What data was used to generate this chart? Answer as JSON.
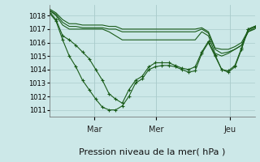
{
  "background_color": "#cce8e8",
  "plot_bg_color": "#cce8e8",
  "grid_color": "#aacccc",
  "line_color": "#1a5c1a",
  "marker_color": "#1a5c1a",
  "ylim": [
    1010.5,
    1018.8
  ],
  "yticks": [
    1011,
    1012,
    1013,
    1014,
    1015,
    1016,
    1017,
    1018
  ],
  "xlabel": "Pression niveau de la mer( hPa )",
  "xlabel_fontsize": 8,
  "day_labels": [
    "Mar",
    "Mer",
    "Jeu"
  ],
  "day_positions": [
    0.22,
    0.52,
    0.88
  ],
  "series": [
    [
      1018.2,
      1017.6,
      1016.2,
      1015.0,
      1014.2,
      1013.2,
      1012.5,
      1011.8,
      1011.2,
      1011.0,
      1011.0,
      1011.3,
      1012.0,
      1013.0,
      1013.3,
      1014.0,
      1014.2,
      1014.3,
      1014.3,
      1014.2,
      1014.0,
      1013.8,
      1013.9,
      1015.2,
      1016.0,
      1015.0,
      1014.0,
      1013.8,
      1014.2,
      1015.5,
      1017.0,
      1017.2
    ],
    [
      1018.3,
      1017.7,
      1016.5,
      1016.2,
      1015.8,
      1015.3,
      1014.8,
      1014.0,
      1013.2,
      1012.2,
      1011.8,
      1011.5,
      1012.5,
      1013.2,
      1013.5,
      1014.2,
      1014.5,
      1014.5,
      1014.5,
      1014.3,
      1014.1,
      1014.0,
      1014.2,
      1015.3,
      1016.1,
      1015.1,
      1014.0,
      1013.9,
      1014.3,
      1015.6,
      1017.0,
      1017.2
    ],
    [
      1018.4,
      1018.0,
      1017.3,
      1017.0,
      1017.0,
      1017.0,
      1017.0,
      1017.0,
      1017.0,
      1016.8,
      1016.5,
      1016.2,
      1016.2,
      1016.2,
      1016.2,
      1016.2,
      1016.2,
      1016.2,
      1016.2,
      1016.2,
      1016.2,
      1016.2,
      1016.2,
      1016.8,
      1016.5,
      1015.2,
      1015.0,
      1015.2,
      1015.5,
      1015.8,
      1016.8,
      1017.0
    ],
    [
      1018.4,
      1018.1,
      1017.5,
      1017.2,
      1017.2,
      1017.1,
      1017.1,
      1017.1,
      1017.1,
      1017.0,
      1017.0,
      1016.8,
      1016.8,
      1016.8,
      1016.8,
      1016.8,
      1016.8,
      1016.8,
      1016.8,
      1016.8,
      1016.8,
      1016.8,
      1016.8,
      1017.0,
      1016.7,
      1015.5,
      1015.2,
      1015.3,
      1015.5,
      1015.8,
      1016.8,
      1017.1
    ],
    [
      1018.5,
      1018.2,
      1017.7,
      1017.4,
      1017.4,
      1017.3,
      1017.3,
      1017.3,
      1017.3,
      1017.2,
      1017.2,
      1017.0,
      1017.0,
      1017.0,
      1017.0,
      1017.0,
      1017.0,
      1017.0,
      1017.0,
      1017.0,
      1017.0,
      1017.0,
      1017.0,
      1017.1,
      1016.8,
      1015.6,
      1015.5,
      1015.5,
      1015.7,
      1016.0,
      1016.9,
      1017.2
    ]
  ],
  "marker_series": [
    0,
    1
  ],
  "n_points": 32
}
